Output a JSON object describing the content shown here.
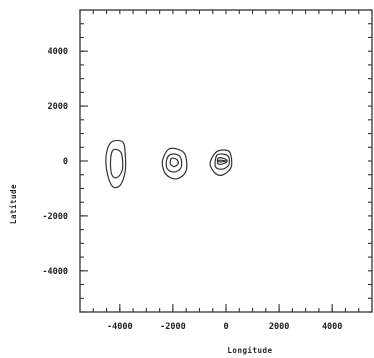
{
  "chart_data": {
    "type": "contour",
    "xlabel": "Longitude",
    "ylabel": "Latitude",
    "xlim": [
      -5500,
      5500
    ],
    "ylim": [
      -5500,
      5500
    ],
    "xticks": [
      -4000,
      -2000,
      0,
      2000,
      4000
    ],
    "yticks": [
      4000,
      2000,
      0,
      -2000,
      -4000
    ],
    "minor_tick_step": 500,
    "grid": false,
    "features": [
      {
        "name": "contour-group-left",
        "levels": [
          {
            "points": [
              [
                -4300,
                700
              ],
              [
                -3900,
                700
              ],
              [
                -3800,
                300
              ],
              [
                -3800,
                -400
              ],
              [
                -4000,
                -900
              ],
              [
                -4300,
                -900
              ],
              [
                -4500,
                -300
              ],
              [
                -4500,
                300
              ]
            ]
          },
          {
            "points": [
              [
                -4250,
                400
              ],
              [
                -3950,
                300
              ],
              [
                -3900,
                -300
              ],
              [
                -4100,
                -600
              ],
              [
                -4300,
                -500
              ],
              [
                -4350,
                0
              ]
            ]
          }
        ]
      },
      {
        "name": "contour-group-middle",
        "levels": [
          {
            "points": [
              [
                -2200,
                400
              ],
              [
                -1900,
                450
              ],
              [
                -1550,
                250
              ],
              [
                -1500,
                -350
              ],
              [
                -1850,
                -650
              ],
              [
                -2250,
                -500
              ],
              [
                -2400,
                -50
              ]
            ]
          },
          {
            "points": [
              [
                -2150,
                200
              ],
              [
                -1900,
                250
              ],
              [
                -1700,
                100
              ],
              [
                -1700,
                -250
              ],
              [
                -1950,
                -400
              ],
              [
                -2200,
                -300
              ],
              [
                -2250,
                -50
              ]
            ]
          },
          {
            "points": [
              [
                -2050,
                100
              ],
              [
                -1850,
                50
              ],
              [
                -1800,
                -100
              ],
              [
                -1950,
                -200
              ],
              [
                -2100,
                -100
              ]
            ]
          }
        ]
      },
      {
        "name": "contour-group-right",
        "levels": [
          {
            "points": [
              [
                -400,
                300
              ],
              [
                -100,
                400
              ],
              [
                150,
                300
              ],
              [
                200,
                -200
              ],
              [
                -100,
                -500
              ],
              [
                -400,
                -450
              ],
              [
                -600,
                -100
              ]
            ]
          },
          {
            "points": [
              [
                -350,
                200
              ],
              [
                -100,
                250
              ],
              [
                100,
                150
              ],
              [
                100,
                -150
              ],
              [
                -150,
                -300
              ],
              [
                -400,
                -200
              ]
            ]
          },
          {
            "points": [
              [
                -300,
                100
              ],
              [
                -100,
                100
              ],
              [
                50,
                0
              ],
              [
                -100,
                -100
              ],
              [
                -300,
                -100
              ]
            ]
          },
          {
            "points": [
              [
                -250,
                30
              ],
              [
                0,
                0
              ],
              [
                -250,
                -30
              ]
            ]
          }
        ]
      }
    ]
  }
}
